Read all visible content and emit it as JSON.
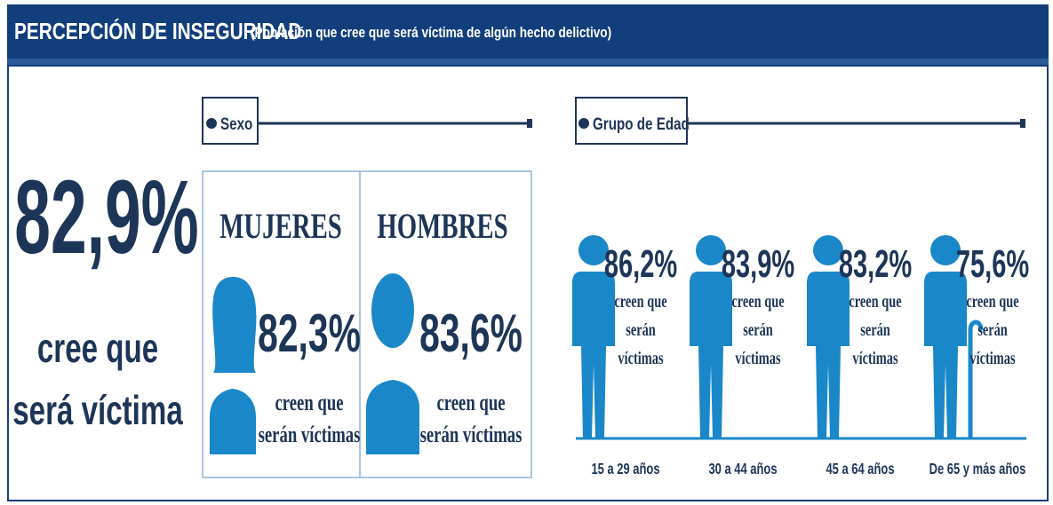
{
  "header": {
    "title": "PERCEPCIÓN DE INSEGURIDAD",
    "subtitle": "(Población que cree que será víctima de algún hecho delictivo)"
  },
  "overall": {
    "value": "82,9%",
    "caption": [
      "cree que",
      "será víctima"
    ]
  },
  "sexo": {
    "heading": "Sexo",
    "groups": [
      {
        "label": "MUJERES",
        "value": "82,3%",
        "caption": [
          "creen que",
          "serán víctimas"
        ]
      },
      {
        "label": "HOMBRES",
        "value": "83,6%",
        "caption": [
          "creen que",
          "serán víctimas"
        ]
      }
    ]
  },
  "edad": {
    "heading": "Grupo de Edad",
    "groups": [
      {
        "value": "86,2%",
        "caption": [
          "creen que",
          "serán",
          "víctimas"
        ],
        "label": "15 a 29 años"
      },
      {
        "value": "83,9%",
        "caption": [
          "creen que",
          "serán",
          "víctimas"
        ],
        "label": "30 a 44 años"
      },
      {
        "value": "83,2%",
        "caption": [
          "creen que",
          "serán",
          "víctimas"
        ],
        "label": "45 a 64 años"
      },
      {
        "value": "75,6%",
        "caption": [
          "creen que",
          "serán",
          "víctimas"
        ],
        "label": "De 65 y más años"
      }
    ]
  }
}
